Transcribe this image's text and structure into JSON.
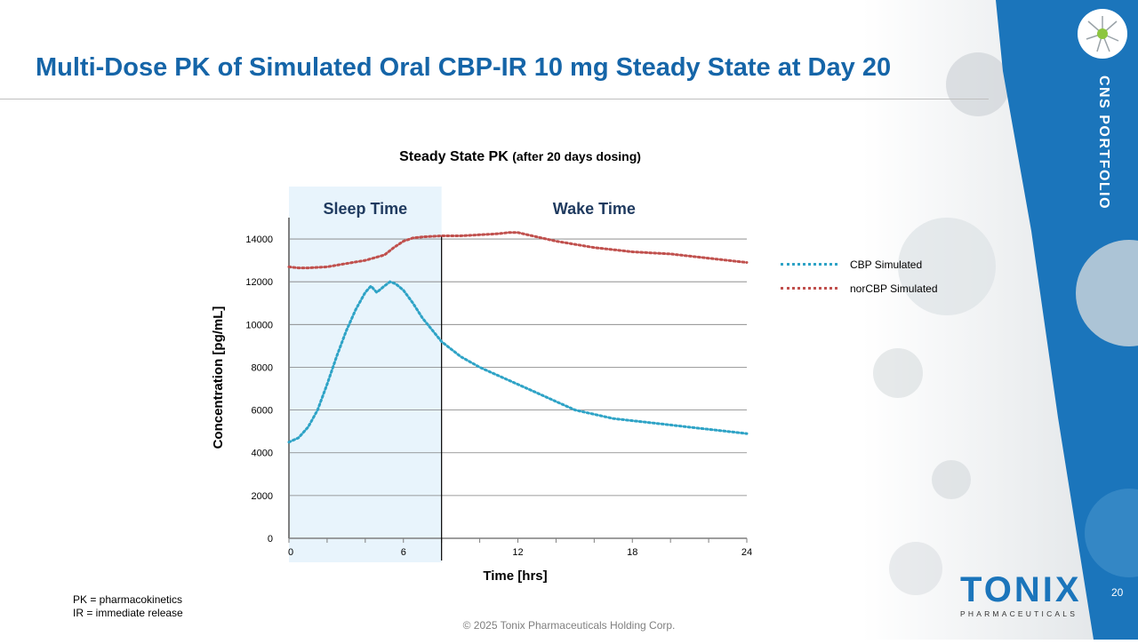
{
  "slide": {
    "title": "Multi-Dose PK of Simulated Oral CBP-IR 10 mg Steady State at Day 20",
    "side_label": "CNS PORTFOLIO",
    "footnotes": [
      "PK = pharmacokinetics",
      "IR = immediate release"
    ],
    "copyright": "© 2025 Tonix Pharmaceuticals Holding Corp.",
    "page_number": "20",
    "logo": {
      "word": "TONIX",
      "subtitle": "PHARMACEUTICALS",
      "brand_color": "#1b75bb"
    },
    "title_color": "#1565a8",
    "side_blue_color": "#1b75bb"
  },
  "chart_data": {
    "type": "line",
    "title": "Steady State PK",
    "subtitle": "(after 20 days dosing)",
    "xlabel": "Time [hrs]",
    "ylabel": "Concentration [pg/mL]",
    "xlim": [
      0,
      24
    ],
    "ylim": [
      0,
      15000
    ],
    "xticks": [
      0,
      6,
      12,
      18,
      24
    ],
    "yticks": [
      0,
      2000,
      4000,
      6000,
      8000,
      10000,
      12000,
      14000
    ],
    "grid": true,
    "legend_position": "right",
    "regions": [
      {
        "label": "Sleep Time",
        "x0": 0,
        "x1": 8,
        "shaded": true,
        "color": "#e8f4fc"
      },
      {
        "label": "Wake Time",
        "x0": 8,
        "x1": 24,
        "shaded": false
      }
    ],
    "divider_x": 8,
    "series": [
      {
        "name": "CBP Simulated",
        "color": "#2ea3c6",
        "style": "dotted",
        "x": [
          0,
          0.5,
          1,
          1.5,
          2,
          2.5,
          3,
          3.5,
          4,
          4.3,
          4.6,
          5,
          5.3,
          5.6,
          6,
          6.5,
          7,
          8,
          9,
          10,
          11,
          12,
          13,
          14,
          15,
          16,
          17,
          18,
          19,
          20,
          21,
          22,
          23,
          24
        ],
        "y": [
          4500,
          4700,
          5200,
          6000,
          7200,
          8500,
          9700,
          10700,
          11500,
          11800,
          11500,
          11800,
          12000,
          11900,
          11600,
          11000,
          10300,
          9200,
          8500,
          8000,
          7600,
          7200,
          6800,
          6400,
          6000,
          5800,
          5600,
          5500,
          5400,
          5300,
          5200,
          5100,
          5000,
          4900
        ]
      },
      {
        "name": "norCBP Simulated",
        "color": "#c0504d",
        "style": "dotted",
        "x": [
          0,
          0.5,
          1,
          2,
          3,
          4,
          5,
          5.5,
          6,
          6.5,
          7,
          8,
          9,
          10,
          11,
          11.5,
          12,
          13,
          14,
          15,
          16,
          17,
          18,
          19,
          20,
          21,
          22,
          23,
          24
        ],
        "y": [
          12700,
          12650,
          12650,
          12700,
          12850,
          13000,
          13250,
          13600,
          13900,
          14050,
          14100,
          14150,
          14150,
          14200,
          14250,
          14300,
          14300,
          14100,
          13900,
          13750,
          13600,
          13500,
          13400,
          13350,
          13300,
          13200,
          13100,
          13000,
          12900
        ]
      }
    ]
  }
}
